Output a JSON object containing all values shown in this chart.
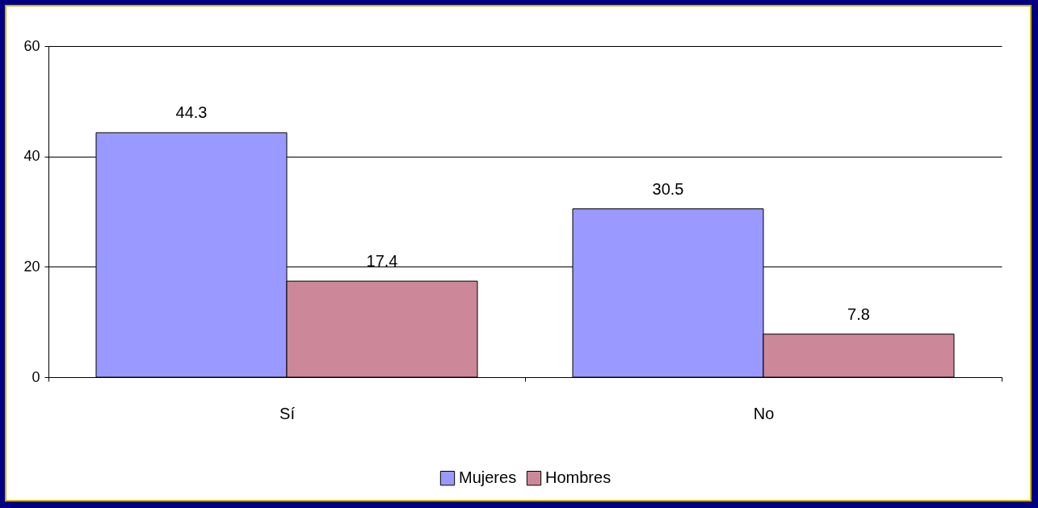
{
  "chart_data": {
    "type": "bar",
    "categories": [
      "Sí",
      "No"
    ],
    "series": [
      {
        "name": "Mujeres",
        "color": "#9999ff",
        "values": [
          44.3,
          30.5
        ]
      },
      {
        "name": "Hombres",
        "color": "#cc8899",
        "values": [
          17.4,
          7.8
        ]
      }
    ],
    "ylim": [
      0,
      60
    ],
    "yticks": [
      0,
      20,
      40,
      60
    ],
    "grid": "y",
    "legend": "bottom",
    "data_labels": true
  }
}
